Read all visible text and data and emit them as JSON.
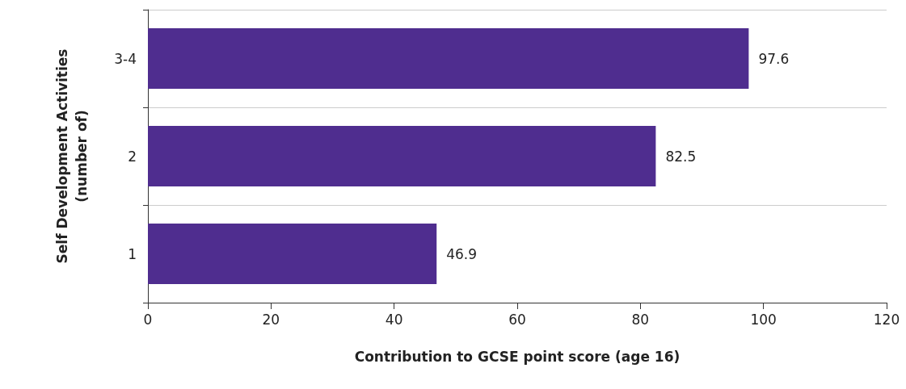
{
  "chart_data": {
    "type": "bar",
    "orientation": "horizontal",
    "xlabel": "Contribution to GCSE point score (age 16)",
    "ylabel": "Self Development Activities\n(number of)",
    "categories": [
      "3-4",
      "2",
      "1"
    ],
    "values": [
      97.6,
      82.5,
      46.9
    ],
    "color": "#4f2d8f",
    "xlim": [
      0,
      120
    ],
    "xticks": [
      0,
      20,
      40,
      60,
      80,
      100,
      120
    ],
    "grid": "y",
    "data_labels": true
  }
}
